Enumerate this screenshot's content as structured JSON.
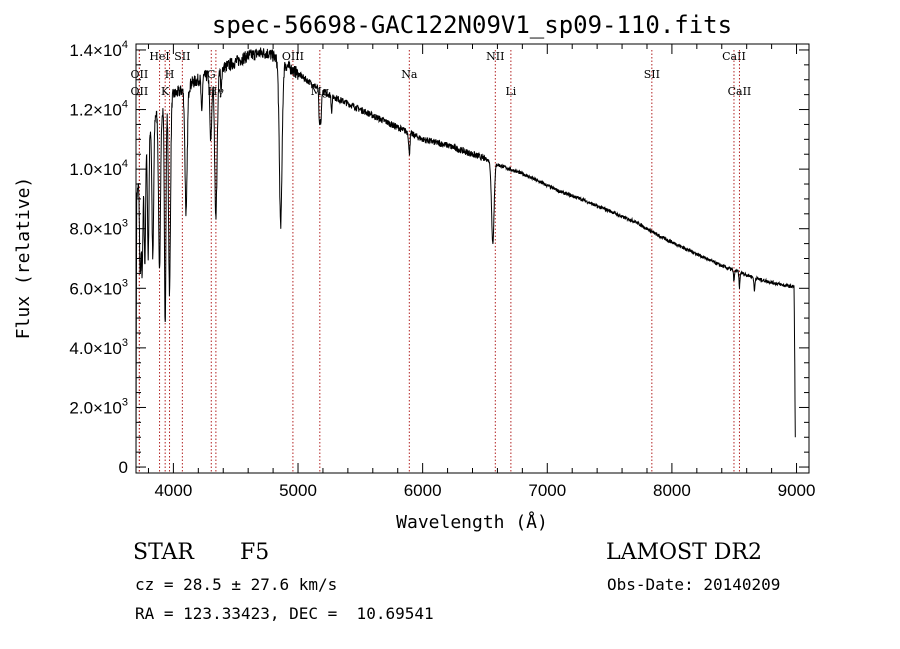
{
  "chart_data": {
    "type": "line",
    "title": "spec-56698-GAC122N09V1_sp09-110.fits",
    "xlabel": "Wavelength (Å)",
    "ylabel": "Flux (relative)",
    "xlim": [
      3700,
      9100
    ],
    "ylim": [
      -200,
      14200
    ],
    "xticks": [
      4000,
      5000,
      6000,
      7000,
      8000,
      9000
    ],
    "xtick_labels": [
      "4000",
      "5000",
      "6000",
      "7000",
      "8000",
      "9000"
    ],
    "yticks": [
      {
        "value": 0,
        "mant": "0",
        "exp": ""
      },
      {
        "value": 2000,
        "mant": "2.0×10",
        "exp": "3"
      },
      {
        "value": 4000,
        "mant": "4.0×10",
        "exp": "3"
      },
      {
        "value": 6000,
        "mant": "6.0×10",
        "exp": "3"
      },
      {
        "value": 8000,
        "mant": "8.0×10",
        "exp": "3"
      },
      {
        "value": 10000,
        "mant": "1.0×10",
        "exp": "4"
      },
      {
        "value": 12000,
        "mant": "1.2×10",
        "exp": "4"
      },
      {
        "value": 14000,
        "mant": "1.4×10",
        "exp": "4"
      }
    ],
    "grid": false,
    "continuum": [
      [
        3700,
        0
      ],
      [
        3705,
        9000
      ],
      [
        3725,
        9800
      ],
      [
        3760,
        10600
      ],
      [
        3800,
        11300
      ],
      [
        3850,
        11800
      ],
      [
        3900,
        12000
      ],
      [
        3950,
        12300
      ],
      [
        4000,
        12500
      ],
      [
        4050,
        12600
      ],
      [
        4100,
        12700
      ],
      [
        4150,
        12900
      ],
      [
        4200,
        13000
      ],
      [
        4250,
        13100
      ],
      [
        4300,
        13200
      ],
      [
        4350,
        13300
      ],
      [
        4400,
        13400
      ],
      [
        4450,
        13500
      ],
      [
        4500,
        13600
      ],
      [
        4550,
        13700
      ],
      [
        4600,
        13800
      ],
      [
        4650,
        13850
      ],
      [
        4700,
        13900
      ],
      [
        4750,
        13900
      ],
      [
        4800,
        13800
      ],
      [
        4850,
        13600
      ],
      [
        4900,
        13500
      ],
      [
        5000,
        13200
      ],
      [
        5100,
        12900
      ],
      [
        5200,
        12600
      ],
      [
        5300,
        12400
      ],
      [
        5400,
        12200
      ],
      [
        5500,
        12000
      ],
      [
        5600,
        11800
      ],
      [
        5700,
        11600
      ],
      [
        5800,
        11400
      ],
      [
        5900,
        11200
      ],
      [
        6000,
        11000
      ],
      [
        6100,
        10900
      ],
      [
        6200,
        10800
      ],
      [
        6300,
        10650
      ],
      [
        6400,
        10500
      ],
      [
        6500,
        10350
      ],
      [
        6600,
        10150
      ],
      [
        6700,
        10000
      ],
      [
        6800,
        9850
      ],
      [
        6900,
        9650
      ],
      [
        7000,
        9450
      ],
      [
        7100,
        9250
      ],
      [
        7200,
        9100
      ],
      [
        7300,
        8950
      ],
      [
        7400,
        8750
      ],
      [
        7500,
        8600
      ],
      [
        7600,
        8400
      ],
      [
        7700,
        8250
      ],
      [
        7800,
        8000
      ],
      [
        7900,
        7750
      ],
      [
        8000,
        7550
      ],
      [
        8100,
        7350
      ],
      [
        8200,
        7150
      ],
      [
        8300,
        6950
      ],
      [
        8400,
        6750
      ],
      [
        8500,
        6600
      ],
      [
        8600,
        6450
      ],
      [
        8700,
        6300
      ],
      [
        8800,
        6200
      ],
      [
        8900,
        6100
      ],
      [
        8980,
        6050
      ],
      [
        8985,
        4000
      ],
      [
        8990,
        1000
      ]
    ],
    "absorption_features": [
      {
        "center": 3734,
        "depth": 3500,
        "width": 6
      },
      {
        "center": 3750,
        "depth": 3800,
        "width": 6
      },
      {
        "center": 3771,
        "depth": 3900,
        "width": 6
      },
      {
        "center": 3798,
        "depth": 4200,
        "width": 6
      },
      {
        "center": 3835,
        "depth": 4700,
        "width": 7
      },
      {
        "center": 3889,
        "depth": 5300,
        "width": 8
      },
      {
        "center": 3934,
        "depth": 7500,
        "width": 6
      },
      {
        "center": 3969,
        "depth": 6500,
        "width": 8
      },
      {
        "center": 4102,
        "depth": 4200,
        "width": 9
      },
      {
        "center": 4227,
        "depth": 1200,
        "width": 5
      },
      {
        "center": 4300,
        "depth": 2300,
        "width": 8
      },
      {
        "center": 4341,
        "depth": 4800,
        "width": 10
      },
      {
        "center": 4383,
        "depth": 900,
        "width": 4
      },
      {
        "center": 4861,
        "depth": 5400,
        "width": 11
      },
      {
        "center": 5172,
        "depth": 1200,
        "width": 5
      },
      {
        "center": 5184,
        "depth": 1000,
        "width": 5
      },
      {
        "center": 5270,
        "depth": 500,
        "width": 4
      },
      {
        "center": 5893,
        "depth": 700,
        "width": 5
      },
      {
        "center": 6563,
        "depth": 2700,
        "width": 10
      },
      {
        "center": 8498,
        "depth": 350,
        "width": 4
      },
      {
        "center": 8542,
        "depth": 500,
        "width": 4
      },
      {
        "center": 8662,
        "depth": 450,
        "width": 4
      }
    ],
    "line_markers": [
      {
        "wavelength": 3727,
        "label": "OII",
        "row": "upper"
      },
      {
        "wavelength": 3727,
        "label": "OII",
        "row": "lower"
      },
      {
        "wavelength": 3889,
        "label": "HeI",
        "row": "top"
      },
      {
        "wavelength": 3934,
        "label": "K",
        "row": "lower"
      },
      {
        "wavelength": 3969,
        "label": "H",
        "row": "upper"
      },
      {
        "wavelength": 4072,
        "label": "SII",
        "row": "top"
      },
      {
        "wavelength": 4304,
        "label": "G",
        "row": "upper"
      },
      {
        "wavelength": 4341,
        "label": "Hγ",
        "row": "lower"
      },
      {
        "wavelength": 4959,
        "label": "OIII",
        "row": "top"
      },
      {
        "wavelength": 5175,
        "label": "Mg",
        "row": "lower"
      },
      {
        "wavelength": 5893,
        "label": "Na",
        "row": "upper"
      },
      {
        "wavelength": 6583,
        "label": "NII",
        "row": "top"
      },
      {
        "wavelength": 6708,
        "label": "Li",
        "row": "lower"
      },
      {
        "wavelength": 7839,
        "label": "SII",
        "row": "upper"
      },
      {
        "wavelength": 8498,
        "label": "CaII",
        "row": "top"
      },
      {
        "wavelength": 8542,
        "label": "CaII",
        "row": "lower"
      }
    ],
    "marker_color": "#b22222",
    "line_color": "#000000"
  },
  "info": {
    "class": "STAR",
    "subclass": "F5",
    "survey": "LAMOST DR2",
    "redshift": "cz = 28.5 ± 27.6 km/s",
    "obs_date": "Obs-Date: 20140209",
    "coords": "RA = 123.33423, DEC =  10.69541"
  }
}
